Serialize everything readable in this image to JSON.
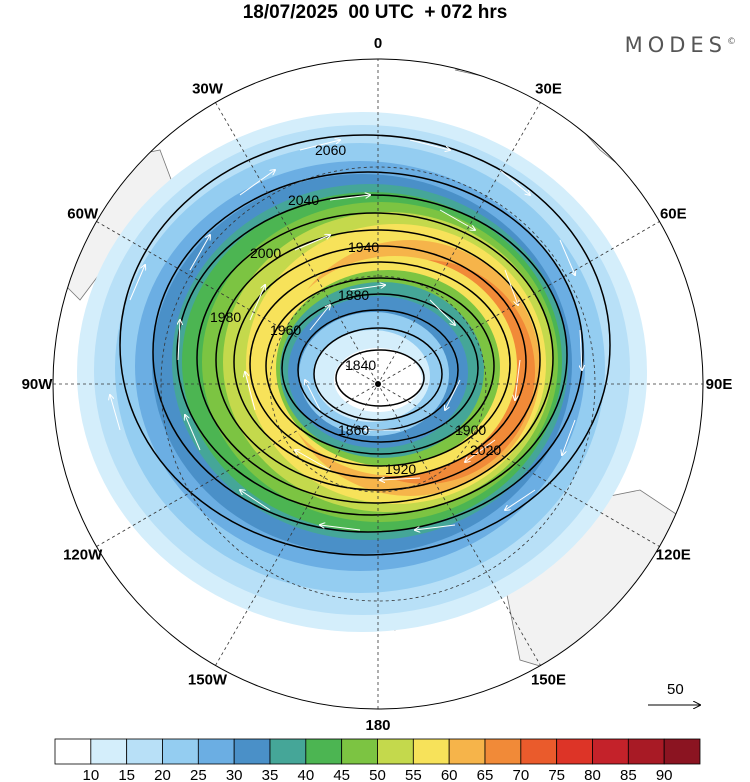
{
  "title": "18/07/2025  00 UTC  + 072 hrs",
  "brand": "MODES",
  "brand_mark": "©",
  "longitude_labels": [
    {
      "text": "0",
      "lon": 0
    },
    {
      "text": "30E",
      "lon": 30
    },
    {
      "text": "60E",
      "lon": 60
    },
    {
      "text": "90E",
      "lon": 90
    },
    {
      "text": "120E",
      "lon": 120
    },
    {
      "text": "150E",
      "lon": 150
    },
    {
      "text": "180",
      "lon": 180
    },
    {
      "text": "150W",
      "lon": -150
    },
    {
      "text": "120W",
      "lon": -120
    },
    {
      "text": "90W",
      "lon": -90
    },
    {
      "text": "60W",
      "lon": -60
    },
    {
      "text": "30W",
      "lon": -30
    }
  ],
  "contour_labels": [
    "2060",
    "2040",
    "2020",
    "2000",
    "1980",
    "1960",
    "1940",
    "1920",
    "1900",
    "1880",
    "1860",
    "1840"
  ],
  "reference_vector": {
    "label": "50"
  },
  "colorbar": {
    "labels": [
      "10",
      "15",
      "20",
      "25",
      "30",
      "35",
      "40",
      "45",
      "50",
      "55",
      "60",
      "65",
      "70",
      "75",
      "80",
      "85",
      "90"
    ],
    "colors": [
      "#ffffff",
      "#d4eefb",
      "#b8e0f7",
      "#94cdf1",
      "#6baee3",
      "#4a90c8",
      "#45a698",
      "#4cb552",
      "#7cc442",
      "#c4d94c",
      "#f7e25a",
      "#f6b44a",
      "#f18a38",
      "#ea5b2c",
      "#dd3427",
      "#c4222a",
      "#a81a25",
      "#8b1421"
    ]
  }
}
